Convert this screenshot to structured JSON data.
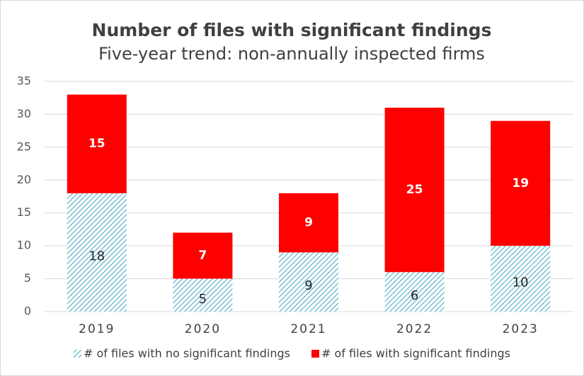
{
  "chart_data": {
    "type": "stacked_bar",
    "title": "Number of files with significant findings",
    "subtitle": "Five-year trend: non-annually inspected firms",
    "categories": [
      "2019",
      "2020",
      "2021",
      "2022",
      "2023"
    ],
    "series": [
      {
        "name": "# of files with no significant findings",
        "color": "#4bacc6",
        "values": [
          18,
          5,
          9,
          6,
          10
        ]
      },
      {
        "name": "# of files with significant findings",
        "color": "#ff0000",
        "values": [
          15,
          7,
          9,
          25,
          19
        ]
      }
    ],
    "ylim": [
      0,
      35
    ],
    "yticks": [
      0,
      5,
      10,
      15,
      20,
      25,
      30,
      35
    ],
    "grid": true,
    "legend": "bottom"
  }
}
